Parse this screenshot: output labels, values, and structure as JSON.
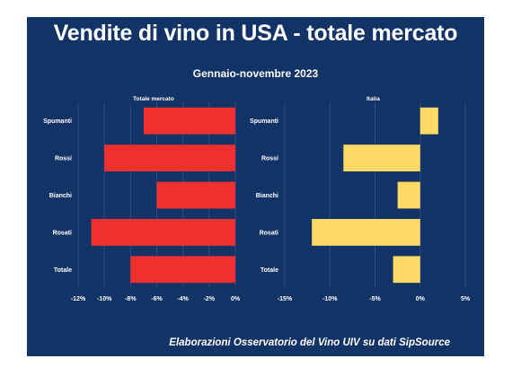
{
  "title": "Vendite di vino in USA - totale mercato",
  "subtitle": "Gennaio-novembre 2023",
  "footer": "Elaborazioni Osservatorio del Vino UIV su dati SipSource",
  "colors": {
    "background": "#123366",
    "totale_bars": "#f0302e",
    "italia_bars": "#ffd966",
    "grid": "#2f4a7c"
  },
  "chart_data": [
    {
      "type": "bar",
      "orientation": "horizontal",
      "title": "Totale mercato",
      "categories": [
        "Spumanti",
        "Rossi",
        "Bianchi",
        "Rosati",
        "Totale"
      ],
      "values": [
        -7.0,
        -10.0,
        -6.0,
        -11.0,
        -8.0
      ],
      "unit": "%",
      "xlim": [
        -12,
        0
      ],
      "xticks": [
        -12,
        -10,
        -8,
        -6,
        -4,
        -2,
        0
      ],
      "xtick_labels": [
        "-12%",
        "-10%",
        "-8%",
        "-6%",
        "-4%",
        "-2%",
        "0%"
      ],
      "grid": "vertical"
    },
    {
      "type": "bar",
      "orientation": "horizontal",
      "title": "Italia",
      "categories": [
        "Spumanti",
        "Rossi",
        "Bianchi",
        "Rosati",
        "Totale"
      ],
      "values": [
        2.0,
        -8.5,
        -2.5,
        -12.0,
        -3.0
      ],
      "unit": "%",
      "xlim": [
        -15,
        5
      ],
      "xticks": [
        -15,
        -10,
        -5,
        0,
        5
      ],
      "xtick_labels": [
        "-15%",
        "-10%",
        "-5%",
        "0%",
        "5%"
      ],
      "grid": "vertical"
    }
  ]
}
